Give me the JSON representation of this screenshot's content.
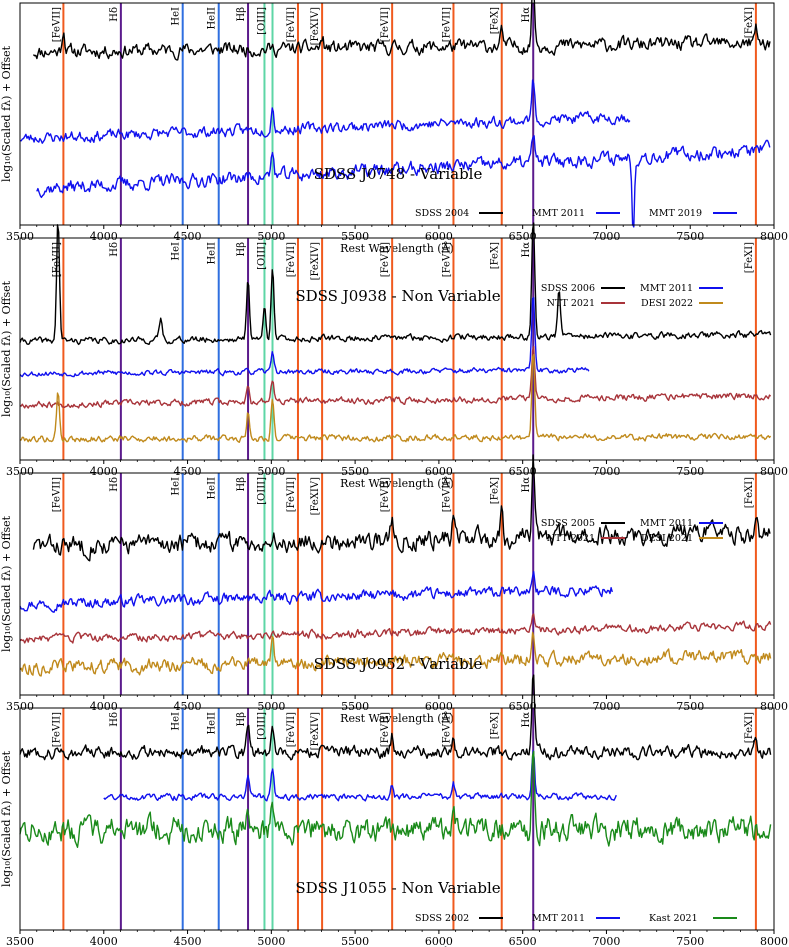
{
  "chart_data": {
    "type": "line",
    "xlabel": "Rest Wavelength (Å)",
    "ylabel": "log₁₀(Scaled fλ) + Offset",
    "xlim": [
      3500,
      8000
    ],
    "xticks": [
      3500,
      4000,
      4500,
      5000,
      5500,
      6000,
      6500,
      7000,
      7500,
      8000
    ],
    "xtick_labels": [
      "3500",
      "4000",
      "4500",
      "5000",
      "5500",
      "6000",
      "6500",
      "7000",
      "7500",
      "8000"
    ],
    "grid": false,
    "emission_lines": [
      {
        "name": "[FeVII]",
        "wavelength": 3759,
        "color": "#f05a1e"
      },
      {
        "name": "Hδ",
        "wavelength": 4102,
        "color": "#5b1a8c"
      },
      {
        "name": "HeI",
        "wavelength": 4471,
        "color": "#2f6fe0"
      },
      {
        "name": "HeII",
        "wavelength": 4686,
        "color": "#2f6fe0"
      },
      {
        "name": "Hβ",
        "wavelength": 4861,
        "color": "#5b1a8c"
      },
      {
        "name": "[OIII]",
        "wavelength": 4959,
        "color": "#5ed6a6"
      },
      {
        "name": "[OIII]",
        "wavelength": 5007,
        "color": "#5ed6a6"
      },
      {
        "name": "[FeVII]",
        "wavelength": 5159,
        "color": "#f05a1e"
      },
      {
        "name": "[FeXIV]",
        "wavelength": 5303,
        "color": "#f05a1e"
      },
      {
        "name": "[FeVII]",
        "wavelength": 5721,
        "color": "#f05a1e"
      },
      {
        "name": "[FeVII]",
        "wavelength": 6087,
        "color": "#f05a1e"
      },
      {
        "name": "[FeX]",
        "wavelength": 6375,
        "color": "#f05a1e"
      },
      {
        "name": "Hα",
        "wavelength": 6563,
        "color": "#5b1a8c"
      },
      {
        "name": "[FeXI]",
        "wavelength": 7892,
        "color": "#f05a1e"
      }
    ],
    "panels": [
      {
        "title": "SDSS J0748 - Variable",
        "legend_position": "bottom-right",
        "series": [
          {
            "name": "SDSS 2004",
            "color": "#000000",
            "x_range": [
              3580,
              7980
            ],
            "level": 0.8,
            "slope": 0.04,
            "noise": 0.025,
            "seed": 11,
            "peaks": [
              [
                6563,
                0.3
              ],
              [
                6375,
                0.06
              ],
              [
                7892,
                0.06
              ],
              [
                5303,
                0.04
              ],
              [
                3759,
                0.1
              ]
            ]
          },
          {
            "name": "MMT 2011",
            "color": "#1010ee",
            "x_range": [
              3500,
              7140
            ],
            "level": 0.45,
            "slope": 0.12,
            "noise": 0.02,
            "seed": 23,
            "peaks": [
              [
                6563,
                0.18
              ],
              [
                5007,
                0.1
              ]
            ]
          },
          {
            "name": "MMT 2019",
            "color": "#1010ee",
            "x_range": [
              3600,
              7980
            ],
            "level": 0.25,
            "slope": 0.18,
            "noise": 0.025,
            "seed": 37,
            "peaks": [
              [
                6563,
                0.12
              ],
              [
                5007,
                0.1
              ]
            ],
            "dips": [
              [
                7160,
                0.32
              ]
            ]
          }
        ]
      },
      {
        "title": "SDSS J0938 - Non Variable",
        "legend_position": "top-right",
        "series": [
          {
            "name": "SDSS 2006",
            "color": "#000000",
            "x_range": [
              3500,
              7980
            ],
            "level": 0.55,
            "slope": 0.03,
            "noise": 0.012,
            "seed": 41,
            "peaks": [
              [
                3727,
                0.55
              ],
              [
                4861,
                0.28
              ],
              [
                5007,
                0.34
              ],
              [
                4959,
                0.14
              ],
              [
                6563,
                0.55
              ],
              [
                6717,
                0.22
              ],
              [
                4340,
                0.1
              ]
            ]
          },
          {
            "name": "MMT 2011",
            "color": "#1010ee",
            "x_range": [
              3500,
              6900
            ],
            "level": 0.4,
            "slope": 0.02,
            "noise": 0.01,
            "seed": 53,
            "peaks": [
              [
                6563,
                0.35
              ],
              [
                5007,
                0.1
              ]
            ]
          },
          {
            "name": "NTT 2021",
            "color": "#a8343a",
            "x_range": [
              3500,
              7980
            ],
            "level": 0.27,
            "slope": 0.04,
            "noise": 0.012,
            "seed": 67,
            "peaks": [
              [
                6563,
                0.25
              ],
              [
                5007,
                0.1
              ],
              [
                4861,
                0.08
              ]
            ]
          },
          {
            "name": "DESI 2022",
            "color": "#c08a1c",
            "x_range": [
              3500,
              7980
            ],
            "level": 0.1,
            "slope": 0.01,
            "noise": 0.012,
            "seed": 79,
            "peaks": [
              [
                6563,
                0.4
              ],
              [
                5007,
                0.18
              ],
              [
                3727,
                0.22
              ],
              [
                4861,
                0.12
              ]
            ]
          }
        ]
      },
      {
        "title": "SDSS J0952 - Variable",
        "legend_position": "top-right",
        "series": [
          {
            "name": "SDSS 2005",
            "color": "#000000",
            "x_range": [
              3580,
              7980
            ],
            "level": 0.7,
            "slope": 0.06,
            "noise": 0.035,
            "seed": 83,
            "peaks": [
              [
                6563,
                0.38
              ],
              [
                6375,
                0.12
              ],
              [
                6087,
                0.1
              ],
              [
                5721,
                0.08
              ],
              [
                7892,
                0.06
              ]
            ]
          },
          {
            "name": "MMT 2011",
            "color": "#1010ee",
            "x_range": [
              3500,
              7040
            ],
            "level": 0.45,
            "slope": 0.08,
            "noise": 0.02,
            "seed": 97,
            "peaks": [
              [
                6563,
                0.1
              ]
            ]
          },
          {
            "name": "NTT 2021",
            "color": "#a8343a",
            "x_range": [
              3500,
              7980
            ],
            "level": 0.28,
            "slope": 0.06,
            "noise": 0.015,
            "seed": 103,
            "peaks": [
              [
                6563,
                0.08
              ]
            ]
          },
          {
            "name": "DESI 2021",
            "color": "#c08a1c",
            "x_range": [
              3500,
              7980
            ],
            "level": 0.15,
            "slope": 0.05,
            "noise": 0.025,
            "seed": 113,
            "peaks": [
              [
                6563,
                0.12
              ],
              [
                5007,
                0.1
              ]
            ]
          }
        ]
      },
      {
        "title": "SDSS J1055 - Non Variable",
        "legend_position": "bottom-right",
        "series": [
          {
            "name": "SDSS 2002",
            "color": "#000000",
            "x_range": [
              3500,
              7980
            ],
            "level": 0.8,
            "slope": 0.0,
            "noise": 0.022,
            "seed": 127,
            "peaks": [
              [
                6563,
                0.35
              ],
              [
                4861,
                0.12
              ],
              [
                5007,
                0.12
              ],
              [
                6087,
                0.1
              ],
              [
                5721,
                0.08
              ],
              [
                7892,
                0.06
              ]
            ]
          },
          {
            "name": "MMT 2011",
            "color": "#1010ee",
            "x_range": [
              4000,
              7060
            ],
            "level": 0.6,
            "slope": 0.0,
            "noise": 0.012,
            "seed": 131,
            "peaks": [
              [
                6563,
                0.22
              ],
              [
                4861,
                0.1
              ],
              [
                5007,
                0.12
              ],
              [
                6087,
                0.06
              ],
              [
                5721,
                0.06
              ]
            ]
          },
          {
            "name": "Kast 2021",
            "color": "#1a8a1a",
            "x_range": [
              3500,
              7980
            ],
            "level": 0.45,
            "slope": 0.0,
            "noise": 0.045,
            "seed": 137,
            "peaks": [
              [
                6563,
                0.4
              ],
              [
                4861,
                0.14
              ],
              [
                5007,
                0.12
              ],
              [
                6087,
                0.06
              ]
            ]
          }
        ]
      }
    ]
  }
}
